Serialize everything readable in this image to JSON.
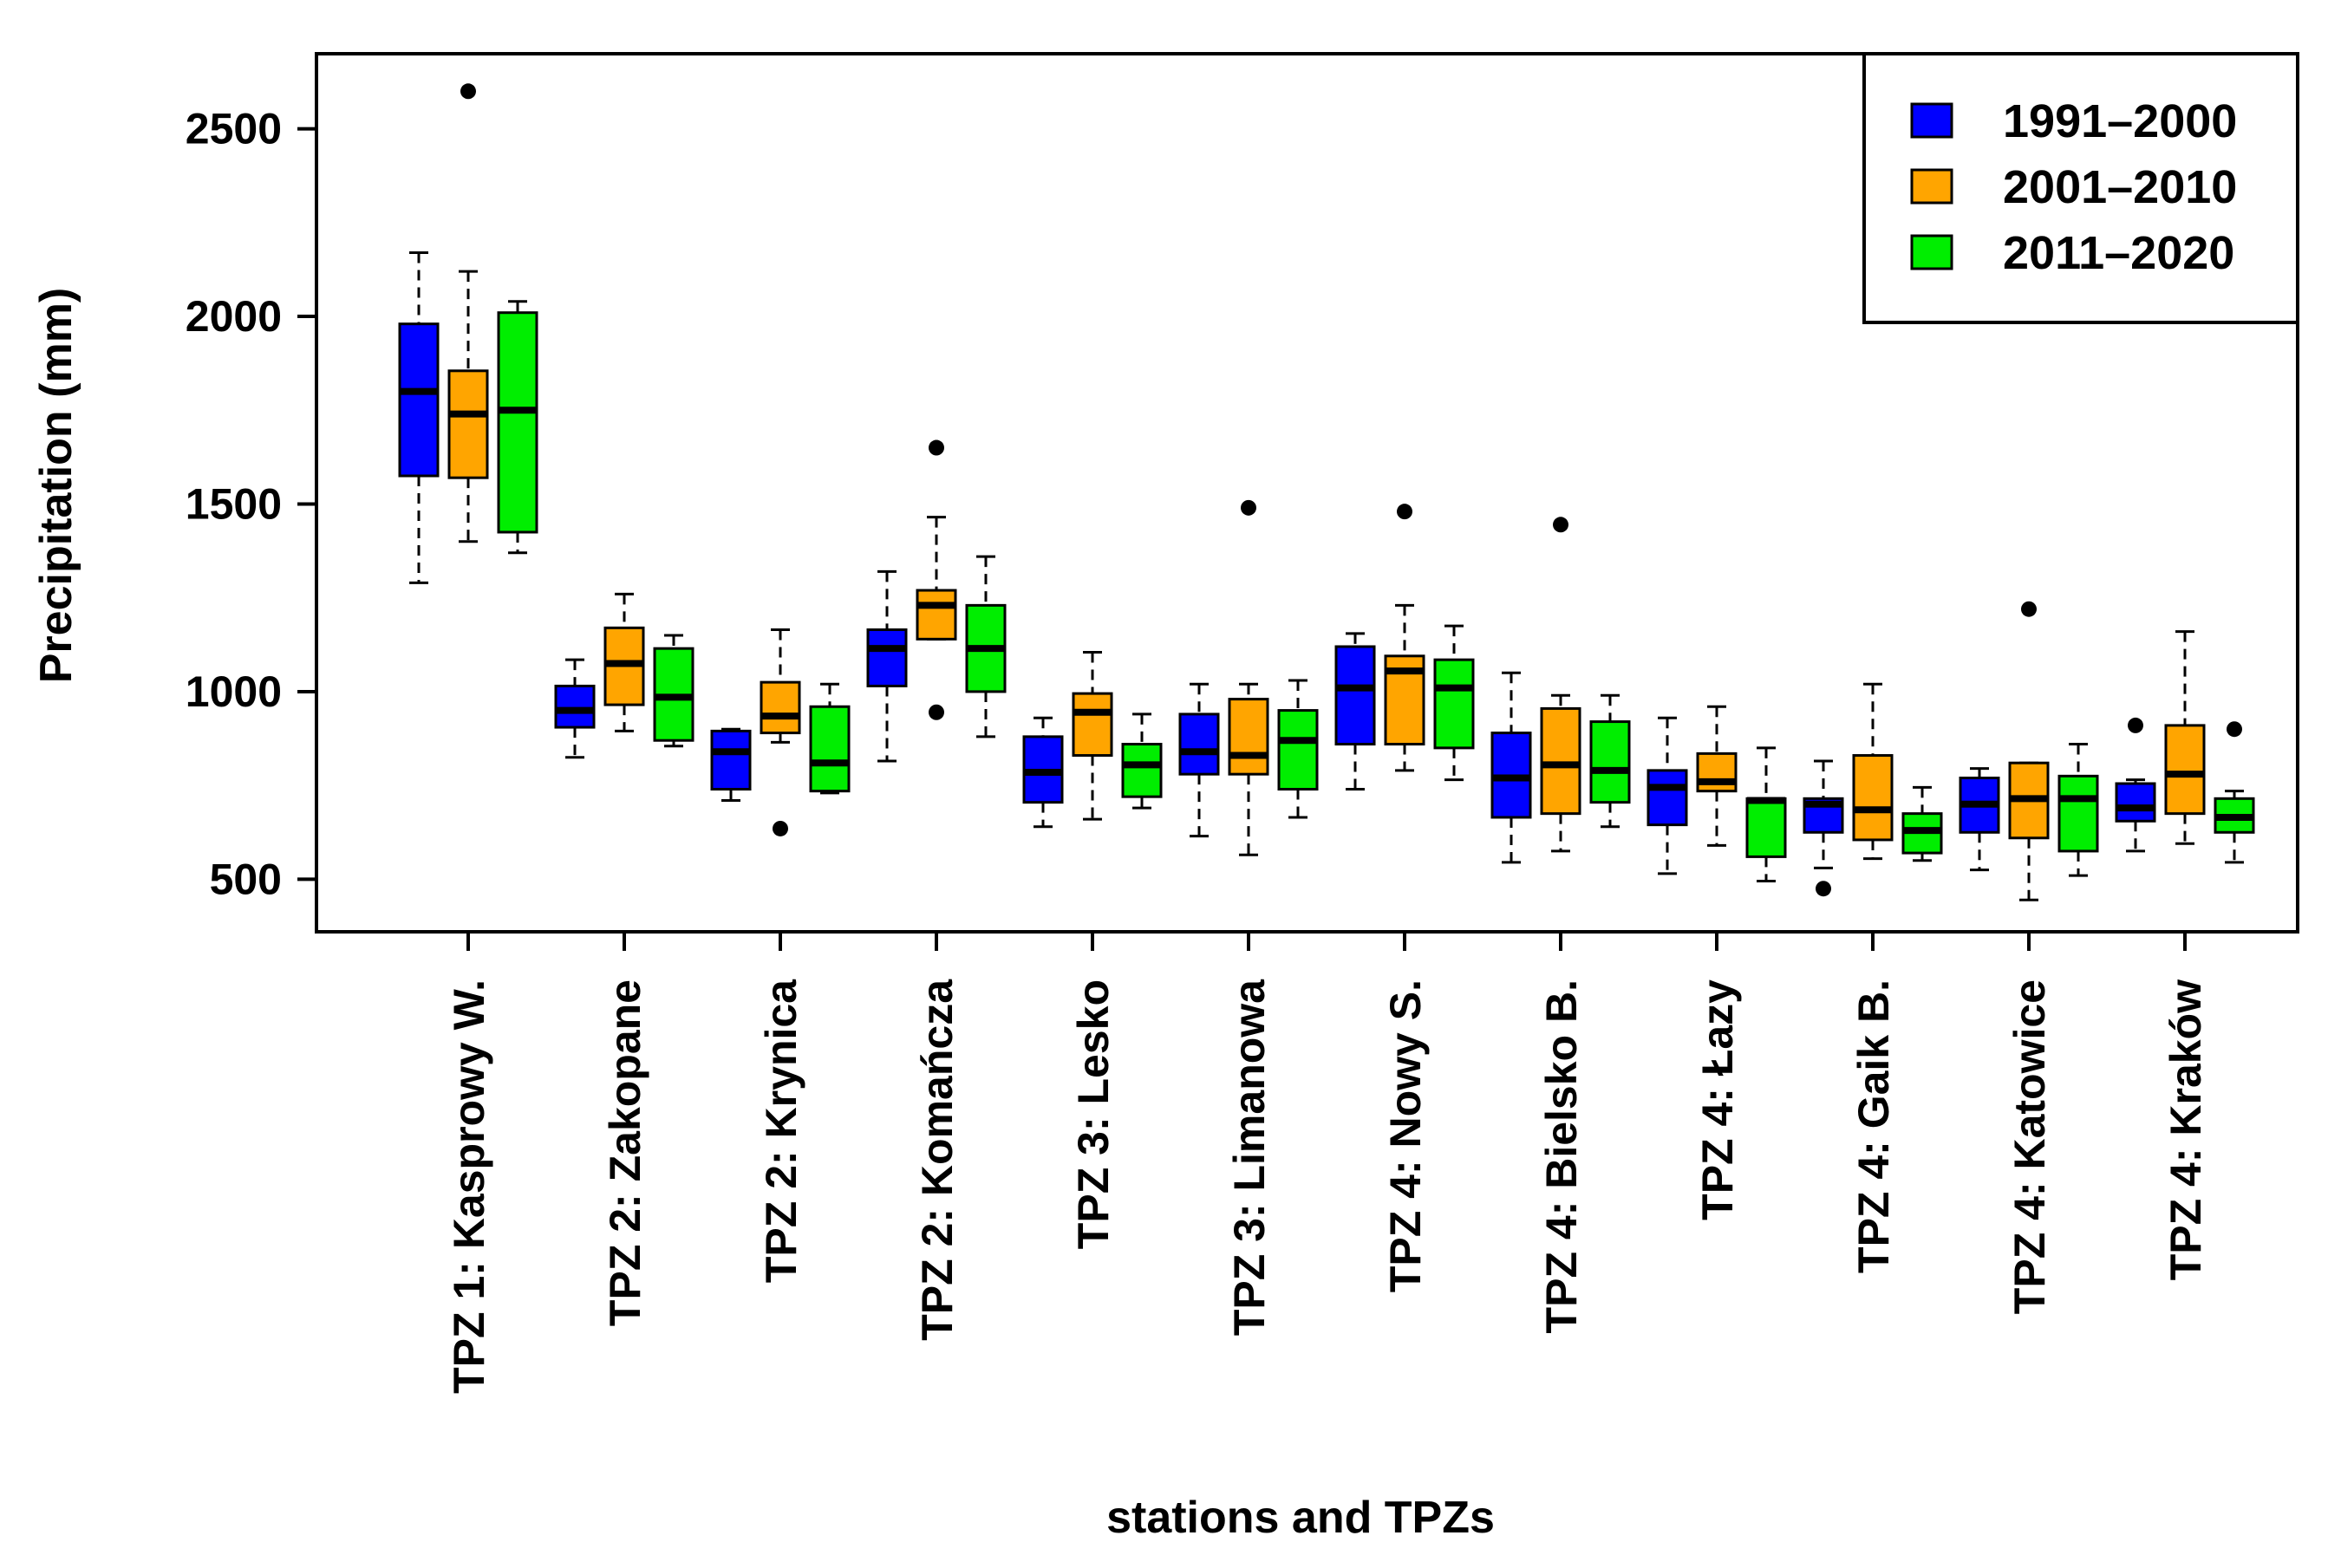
{
  "chart_data": {
    "type": "boxplot",
    "title": "",
    "xlabel": "stations and TPZs",
    "ylabel": "Precipitation (mm)",
    "ylim": [
      360,
      2700
    ],
    "yticks": [
      500,
      1000,
      1500,
      2000,
      2500
    ],
    "legend_position": "top-right",
    "categories": [
      "TPZ 1: Kasprowy W.",
      "TPZ 2: Zakopane",
      "TPZ 2: Krynica",
      "TPZ 2: Komańcza",
      "TPZ 3: Lesko",
      "TPZ 3: Limanowa",
      "TPZ 4: Nowy S.",
      "TPZ 4: Bielsko B.",
      "TPZ 4: Łazy",
      "TPZ 4: Gaik B.",
      "TPZ 4: Katowice",
      "TPZ 4: Kraków"
    ],
    "series": [
      {
        "name": "1991–2000",
        "color": "#0000ff",
        "boxes": [
          {
            "min": 1290,
            "q1": 1575,
            "median": 1800,
            "q3": 1980,
            "max": 2170,
            "outliers": []
          },
          {
            "min": 825,
            "q1": 905,
            "median": 950,
            "q3": 1015,
            "max": 1085,
            "outliers": []
          },
          {
            "min": 710,
            "q1": 740,
            "median": 840,
            "q3": 895,
            "max": 900,
            "outliers": []
          },
          {
            "min": 815,
            "q1": 1015,
            "median": 1115,
            "q3": 1165,
            "max": 1320,
            "outliers": []
          },
          {
            "min": 640,
            "q1": 705,
            "median": 785,
            "q3": 880,
            "max": 930,
            "outliers": []
          },
          {
            "min": 615,
            "q1": 780,
            "median": 840,
            "q3": 940,
            "max": 1020,
            "outliers": []
          },
          {
            "min": 740,
            "q1": 860,
            "median": 1010,
            "q3": 1120,
            "max": 1155,
            "outliers": []
          },
          {
            "min": 545,
            "q1": 665,
            "median": 770,
            "q3": 890,
            "max": 1050,
            "outliers": []
          },
          {
            "min": 515,
            "q1": 645,
            "median": 745,
            "q3": 790,
            "max": 930,
            "outliers": []
          },
          {
            "min": 530,
            "q1": 625,
            "median": 700,
            "q3": 715,
            "max": 815,
            "outliers": [
              475
            ]
          },
          {
            "min": 525,
            "q1": 625,
            "median": 700,
            "q3": 770,
            "max": 795,
            "outliers": []
          },
          {
            "min": 575,
            "q1": 655,
            "median": 690,
            "q3": 755,
            "max": 765,
            "outliers": [
              910
            ]
          }
        ]
      },
      {
        "name": "2001–2010",
        "color": "#ffa500",
        "boxes": [
          {
            "min": 1400,
            "q1": 1570,
            "median": 1740,
            "q3": 1855,
            "max": 2120,
            "outliers": [
              2600
            ]
          },
          {
            "min": 895,
            "q1": 965,
            "median": 1075,
            "q3": 1170,
            "max": 1260,
            "outliers": []
          },
          {
            "min": 865,
            "q1": 890,
            "median": 935,
            "q3": 1025,
            "max": 1165,
            "outliers": [
              635
            ]
          },
          {
            "min": 1140,
            "q1": 1140,
            "median": 1230,
            "q3": 1270,
            "max": 1465,
            "outliers": [
              1650,
              945
            ]
          },
          {
            "min": 660,
            "q1": 830,
            "median": 945,
            "q3": 995,
            "max": 1105,
            "outliers": []
          },
          {
            "min": 565,
            "q1": 780,
            "median": 830,
            "q3": 980,
            "max": 1020,
            "outliers": [
              1490
            ]
          },
          {
            "min": 790,
            "q1": 860,
            "median": 1055,
            "q3": 1095,
            "max": 1230,
            "outliers": [
              1480
            ]
          },
          {
            "min": 575,
            "q1": 675,
            "median": 805,
            "q3": 955,
            "max": 990,
            "outliers": [
              1445
            ]
          },
          {
            "min": 590,
            "q1": 735,
            "median": 760,
            "q3": 835,
            "max": 960,
            "outliers": []
          },
          {
            "min": 555,
            "q1": 605,
            "median": 685,
            "q3": 830,
            "max": 1020,
            "outliers": []
          },
          {
            "min": 445,
            "q1": 610,
            "median": 715,
            "q3": 810,
            "max": 810,
            "outliers": [
              1220
            ]
          },
          {
            "min": 595,
            "q1": 675,
            "median": 780,
            "q3": 910,
            "max": 1160,
            "outliers": []
          }
        ]
      },
      {
        "name": "2011–2020",
        "color": "#00ee00",
        "boxes": [
          {
            "min": 1370,
            "q1": 1425,
            "median": 1750,
            "q3": 2010,
            "max": 2040,
            "outliers": []
          },
          {
            "min": 855,
            "q1": 870,
            "median": 985,
            "q3": 1115,
            "max": 1150,
            "outliers": []
          },
          {
            "min": 730,
            "q1": 735,
            "median": 810,
            "q3": 960,
            "max": 1020,
            "outliers": []
          },
          {
            "min": 880,
            "q1": 1000,
            "median": 1115,
            "q3": 1230,
            "max": 1360,
            "outliers": []
          },
          {
            "min": 690,
            "q1": 720,
            "median": 805,
            "q3": 860,
            "max": 940,
            "outliers": []
          },
          {
            "min": 665,
            "q1": 740,
            "median": 870,
            "q3": 950,
            "max": 1030,
            "outliers": []
          },
          {
            "min": 765,
            "q1": 850,
            "median": 1010,
            "q3": 1085,
            "max": 1175,
            "outliers": []
          },
          {
            "min": 640,
            "q1": 705,
            "median": 790,
            "q3": 920,
            "max": 990,
            "outliers": []
          },
          {
            "min": 495,
            "q1": 560,
            "median": 710,
            "q3": 715,
            "max": 850,
            "outliers": []
          },
          {
            "min": 550,
            "q1": 570,
            "median": 630,
            "q3": 675,
            "max": 745,
            "outliers": []
          },
          {
            "min": 510,
            "q1": 575,
            "median": 715,
            "q3": 775,
            "max": 860,
            "outliers": []
          },
          {
            "min": 545,
            "q1": 625,
            "median": 665,
            "q3": 715,
            "max": 735,
            "outliers": [
              900
            ]
          }
        ]
      }
    ]
  }
}
